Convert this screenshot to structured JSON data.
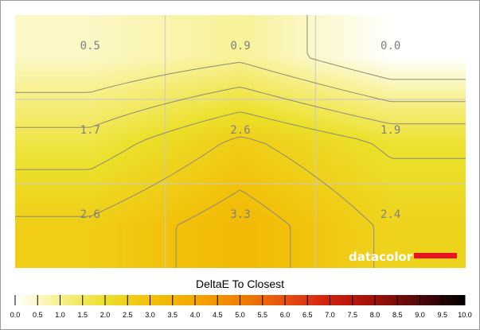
{
  "chart_data": {
    "type": "heatmap",
    "rows": 3,
    "cols": 3,
    "values": [
      [
        0.5,
        0.9,
        0.0
      ],
      [
        1.7,
        2.6,
        1.9
      ],
      [
        2.6,
        3.3,
        2.4
      ]
    ],
    "labels": [
      [
        "0.5",
        "0.9",
        "0.0"
      ],
      [
        "1.7",
        "2.6",
        "1.9"
      ],
      [
        "2.6",
        "3.3",
        "2.4"
      ]
    ],
    "grid": true,
    "contours": true,
    "colorbar": {
      "title": "DeltaE To Closest",
      "min": 0,
      "max": 10,
      "ticks": [
        "0.0",
        "0.5",
        "1.0",
        "1.5",
        "2.0",
        "2.5",
        "3.0",
        "3.5",
        "4.0",
        "4.5",
        "5.0",
        "5.5",
        "6.0",
        "6.5",
        "7.0",
        "7.5",
        "8.0",
        "8.5",
        "9.0",
        "9.5",
        "10.0"
      ],
      "stops": [
        {
          "v": 0.0,
          "color": "#ffffff"
        },
        {
          "v": 1.0,
          "color": "#f7f08c"
        },
        {
          "v": 2.0,
          "color": "#ece02a"
        },
        {
          "v": 3.0,
          "color": "#f2c00a"
        },
        {
          "v": 4.0,
          "color": "#f4a800"
        },
        {
          "v": 5.0,
          "color": "#f08000"
        },
        {
          "v": 6.0,
          "color": "#e85010"
        },
        {
          "v": 7.0,
          "color": "#d02010"
        },
        {
          "v": 8.0,
          "color": "#a01008"
        },
        {
          "v": 9.0,
          "color": "#500808"
        },
        {
          "v": 10.0,
          "color": "#000000"
        }
      ]
    }
  },
  "logo": {
    "text": "datacolor",
    "bar_color": "#e8141e"
  }
}
